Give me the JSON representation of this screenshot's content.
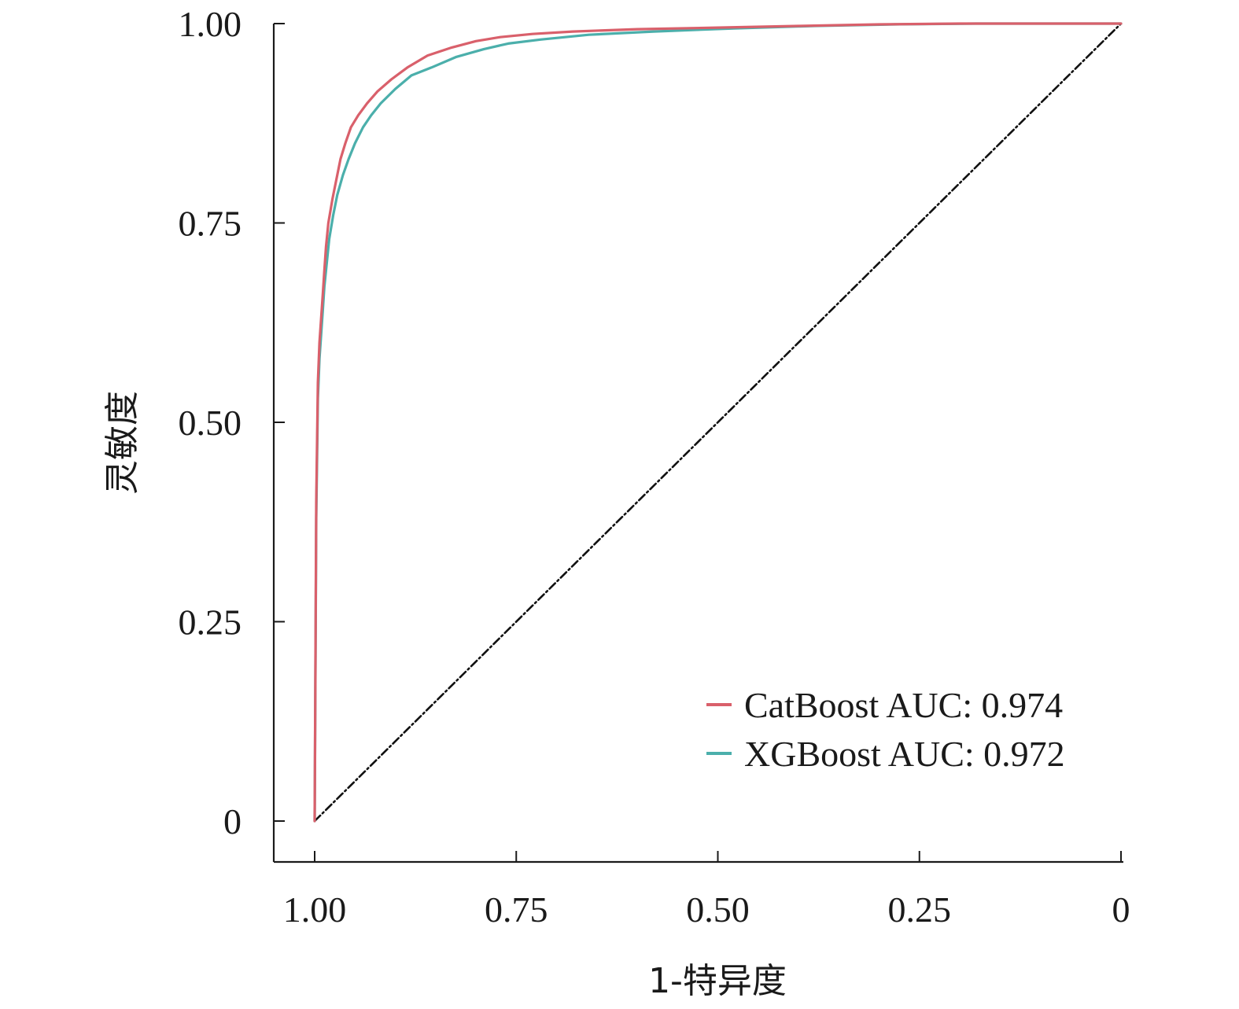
{
  "chart_data": {
    "type": "line",
    "title": "",
    "xlabel": "1-特异度",
    "ylabel": "灵敏度",
    "x_reversed": true,
    "xlim": [
      1.0,
      0.0
    ],
    "ylim": [
      0.0,
      1.0
    ],
    "x_ticks": [
      1.0,
      0.75,
      0.5,
      0.25,
      0.0
    ],
    "x_tick_labels": [
      "1.00",
      "0.75",
      "0.50",
      "0.25",
      "0"
    ],
    "y_ticks": [
      0.0,
      0.25,
      0.5,
      0.75,
      1.0
    ],
    "y_tick_labels": [
      "0",
      "0.25",
      "0.50",
      "0.75",
      "1.00"
    ],
    "grid": false,
    "legend_position": "bottom-right",
    "series": [
      {
        "name": "CatBoost AUC: 0.974",
        "color": "#d9606b",
        "x": [
          1.0,
          0.998,
          0.996,
          0.994,
          0.992,
          0.99,
          0.988,
          0.986,
          0.983,
          0.978,
          0.973,
          0.968,
          0.962,
          0.955,
          0.946,
          0.935,
          0.922,
          0.905,
          0.885,
          0.86,
          0.83,
          0.8,
          0.77,
          0.73,
          0.68,
          0.6,
          0.5,
          0.4,
          0.3,
          0.2,
          0.1,
          0.0
        ],
        "y": [
          0.0,
          0.4,
          0.55,
          0.6,
          0.63,
          0.66,
          0.69,
          0.72,
          0.75,
          0.78,
          0.805,
          0.83,
          0.85,
          0.87,
          0.885,
          0.9,
          0.915,
          0.93,
          0.945,
          0.96,
          0.97,
          0.978,
          0.983,
          0.987,
          0.99,
          0.993,
          0.995,
          0.997,
          0.999,
          1.0,
          1.0,
          1.0
        ]
      },
      {
        "name": "XGBoost AUC: 0.972",
        "color": "#4bafab",
        "x": [
          1.0,
          0.998,
          0.996,
          0.994,
          0.992,
          0.99,
          0.988,
          0.985,
          0.982,
          0.977,
          0.972,
          0.965,
          0.958,
          0.95,
          0.94,
          0.93,
          0.918,
          0.9,
          0.88,
          0.855,
          0.825,
          0.79,
          0.76,
          0.72,
          0.66,
          0.58,
          0.48,
          0.38,
          0.28,
          0.18,
          0.08,
          0.0
        ],
        "y": [
          0.0,
          0.38,
          0.53,
          0.58,
          0.61,
          0.64,
          0.67,
          0.7,
          0.73,
          0.76,
          0.785,
          0.81,
          0.83,
          0.85,
          0.87,
          0.885,
          0.9,
          0.918,
          0.935,
          0.945,
          0.958,
          0.968,
          0.975,
          0.98,
          0.986,
          0.99,
          0.994,
          0.997,
          0.999,
          1.0,
          1.0,
          1.0
        ]
      },
      {
        "name": "",
        "color": "#111111",
        "dash": "dashdot",
        "x": [
          1.0,
          0.0
        ],
        "y": [
          0.0,
          1.0
        ]
      }
    ]
  }
}
